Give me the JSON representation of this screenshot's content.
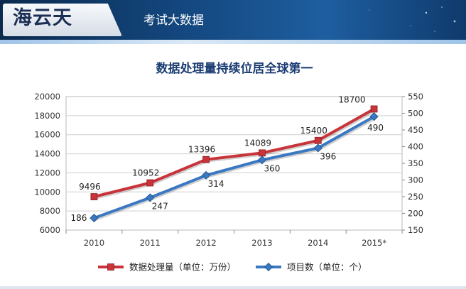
{
  "header": {
    "brand": "海云天",
    "section_title": "考试大数据"
  },
  "colors": {
    "banner_dark": "#0c2a4e",
    "banner_light": "#1e5ea0",
    "series_red": "#c8343a",
    "series_blue": "#3a78c2",
    "title_text": "#1b3d73"
  },
  "chart_data": {
    "type": "line",
    "title": "数据处理量持续位居全球第一",
    "categories": [
      "2010",
      "2011",
      "2012",
      "2013",
      "2014",
      "2015*"
    ],
    "y_left": {
      "min": 6000,
      "max": 20000,
      "ticks": [
        "6000",
        "8000",
        "10000",
        "12000",
        "14000",
        "16000",
        "18000",
        "20000"
      ]
    },
    "y_right": {
      "min": 150,
      "max": 550,
      "ticks": [
        "150",
        "200",
        "250",
        "300",
        "350",
        "400",
        "450",
        "500",
        "550"
      ]
    },
    "grid": true,
    "legend_position": "bottom",
    "series": [
      {
        "name": "数据处理量（单位：万份）",
        "axis": "left",
        "color": "#c8343a",
        "marker": "square",
        "values": [
          9496,
          10952,
          13396,
          14089,
          15400,
          18700
        ],
        "labels": [
          "9496",
          "10952",
          "13396",
          "14089",
          "15400",
          "18700"
        ]
      },
      {
        "name": "项目数（单位：个）",
        "axis": "right",
        "color": "#3a78c2",
        "marker": "diamond",
        "values": [
          186,
          247,
          314,
          360,
          396,
          490
        ],
        "labels": [
          "186",
          "247",
          "314",
          "360",
          "396",
          "490"
        ]
      }
    ]
  }
}
